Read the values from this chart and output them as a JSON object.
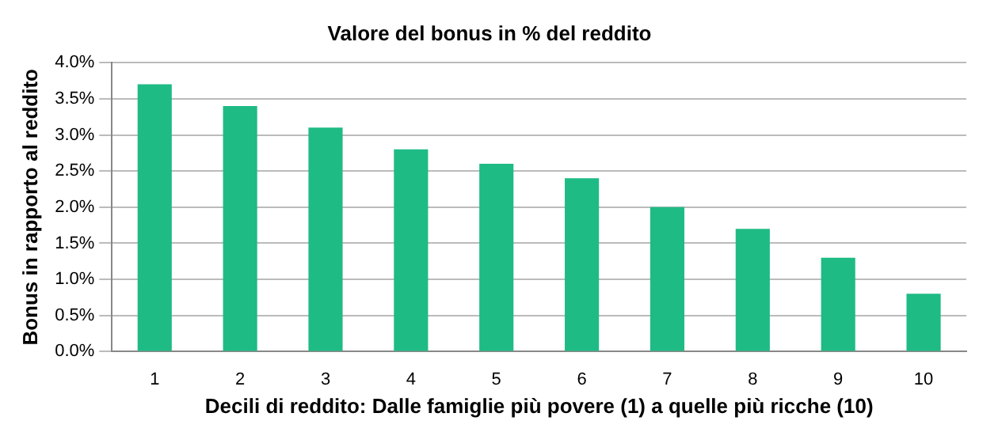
{
  "chart_data": {
    "type": "bar",
    "title": "Valore del bonus in % del reddito",
    "xlabel": "Decili di reddito: Dalle famiglie più povere (1) a quelle più ricche (10)",
    "ylabel": "Bonus in rapporto al reddito",
    "categories": [
      "1",
      "2",
      "3",
      "4",
      "5",
      "6",
      "7",
      "8",
      "9",
      "10"
    ],
    "values": [
      3.7,
      3.4,
      3.1,
      2.8,
      2.6,
      2.4,
      2.0,
      1.7,
      1.3,
      0.8
    ],
    "color": "#1fbb85",
    "ylim": [
      0,
      4
    ],
    "yticks": [
      {
        "value": 0,
        "label": "0.0%"
      },
      {
        "value": 0.5,
        "label": "0.5%"
      },
      {
        "value": 1,
        "label": "1.0%"
      },
      {
        "value": 1.5,
        "label": "1.5%"
      },
      {
        "value": 2,
        "label": "2.0%"
      },
      {
        "value": 2.5,
        "label": "2.5%"
      },
      {
        "value": 3,
        "label": "3.0%"
      },
      {
        "value": 3.5,
        "label": "3.5%"
      },
      {
        "value": 4,
        "label": "4.0%"
      }
    ],
    "grid": "y",
    "legend": false
  }
}
